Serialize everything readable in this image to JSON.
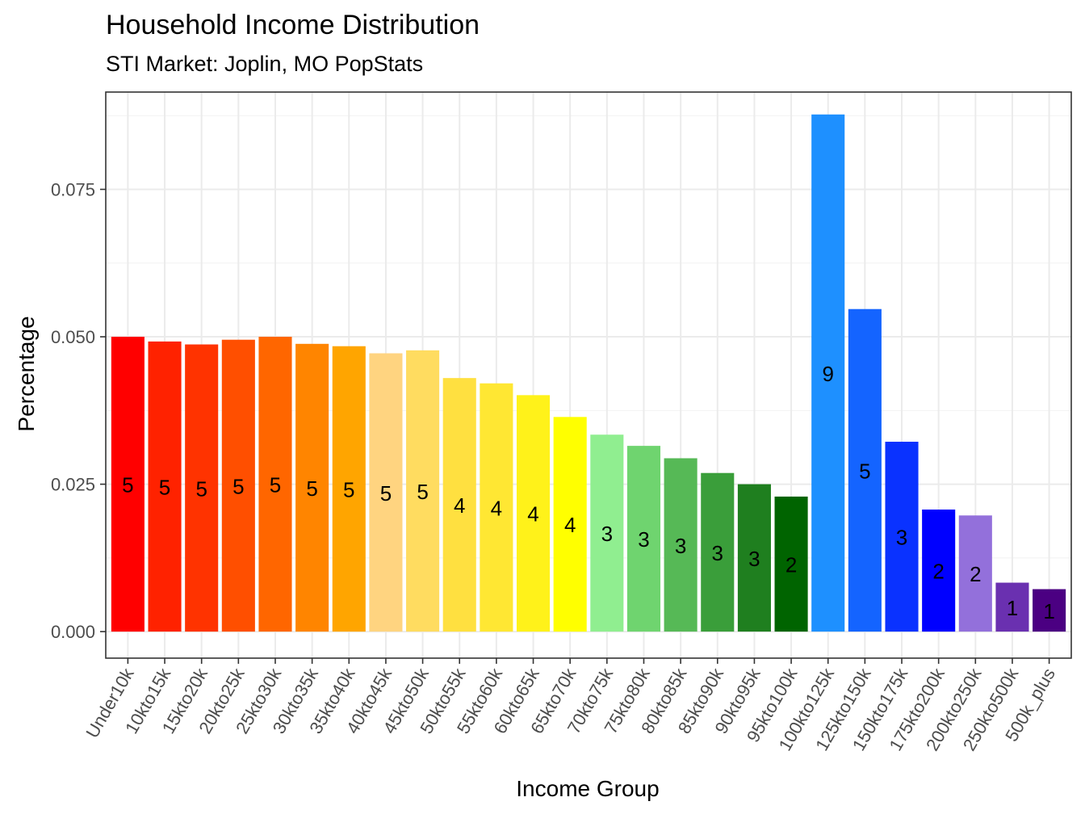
{
  "chart_data": {
    "type": "bar",
    "title": "Household Income Distribution",
    "subtitle": "STI Market: Joplin, MO PopStats",
    "xlabel": "Income Group",
    "ylabel": "Percentage",
    "ylim": [
      -0.0045,
      0.0915
    ],
    "yticks": [
      0,
      0.025,
      0.05,
      0.075
    ],
    "ytick_labels": [
      "0.000",
      "0.025",
      "0.050",
      "0.075"
    ],
    "grid": true,
    "legend": "none",
    "categories": [
      "Under10k",
      "10kto15k",
      "15kto20k",
      "20kto25k",
      "25kto30k",
      "30kto35k",
      "35kto40k",
      "40kto45k",
      "45kto50k",
      "50kto55k",
      "55kto60k",
      "60kto65k",
      "65kto70k",
      "70kto75k",
      "75kto80k",
      "80kto85k",
      "85kto90k",
      "90kto95k",
      "95kto100k",
      "100kto125k",
      "125kto150k",
      "150kto175k",
      "175kto200k",
      "200kto250k",
      "250kto500k",
      "500k_plus"
    ],
    "values": [
      0.05,
      0.0492,
      0.0487,
      0.0495,
      0.05,
      0.0488,
      0.0484,
      0.0472,
      0.0477,
      0.043,
      0.0421,
      0.0401,
      0.0364,
      0.0334,
      0.0315,
      0.0294,
      0.0269,
      0.025,
      0.0229,
      0.0877,
      0.0547,
      0.0322,
      0.0207,
      0.0197,
      0.0083,
      0.0072
    ],
    "bar_labels": [
      "5",
      "5",
      "5",
      "5",
      "5",
      "5",
      "5",
      "5",
      "5",
      "4",
      "4",
      "4",
      "4",
      "3",
      "3",
      "3",
      "3",
      "3",
      "2",
      "9",
      "5",
      "3",
      "2",
      "2",
      "1",
      "1"
    ],
    "colors": [
      "#FF0000",
      "#FF2200",
      "#FF3300",
      "#FF4F00",
      "#FF6600",
      "#FF8500",
      "#FFA500",
      "#FFD480",
      "#FFDC60",
      "#FFE040",
      "#FFE733",
      "#FFF21A",
      "#FFFF00",
      "#90EE90",
      "#6FD46F",
      "#56B956",
      "#3A9E3A",
      "#1F7F1F",
      "#006400",
      "#1E90FF",
      "#1464FF",
      "#0A32FF",
      "#0000FF",
      "#9370DB",
      "#6A30B0",
      "#4B0082"
    ]
  }
}
